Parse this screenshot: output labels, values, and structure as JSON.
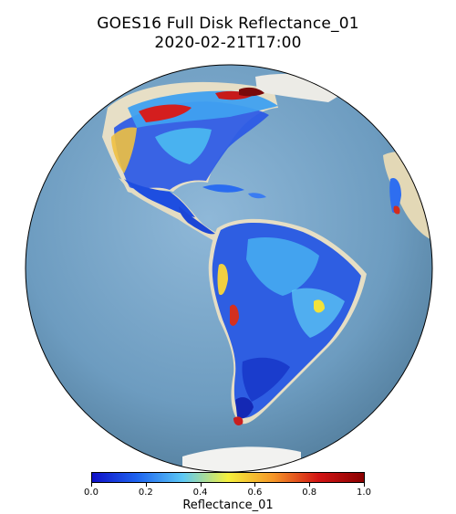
{
  "title": {
    "line1": "GOES16 Full Disk Reflectance_01",
    "line2": "2020-02-21T17:00"
  },
  "map": {
    "projection": "geostationary full disk",
    "ocean_color": "#6f9fc0",
    "land_color": "#e8e1c8",
    "outline_color": "#000000"
  },
  "colorbar": {
    "label": "Reflectance_01",
    "colormap": "jet",
    "range": [
      0.0,
      1.0
    ],
    "colors": [
      "#1010c8",
      "#1e64f0",
      "#5cc8f5",
      "#f5f03c",
      "#f59628",
      "#d21414",
      "#8a0000"
    ],
    "ticks": [
      "0.0",
      "0.2",
      "0.4",
      "0.6",
      "0.8",
      "1.0"
    ]
  }
}
